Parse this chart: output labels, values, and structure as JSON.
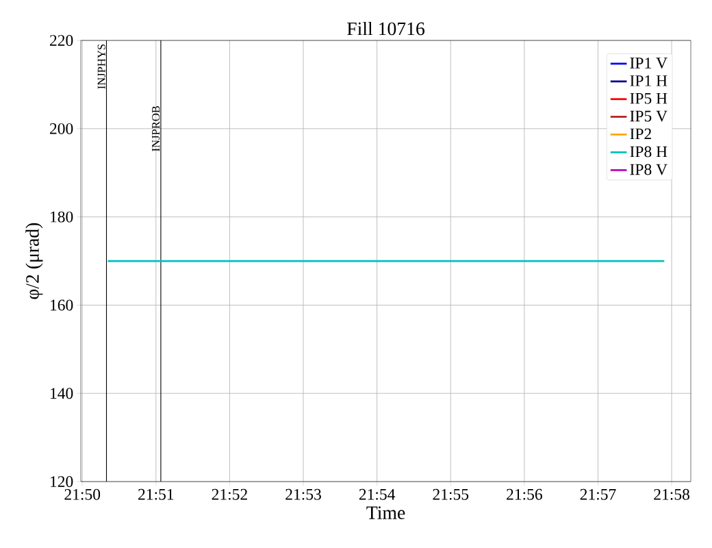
{
  "chart_data": {
    "type": "line",
    "title": "Fill 10716",
    "xlabel": "Time",
    "ylabel": "φ/2 (μrad)",
    "x": [
      21.8391,
      21.965
    ],
    "series": [
      {
        "name": "IP1 V",
        "color": "#0000ff",
        "values": [
          null,
          null
        ]
      },
      {
        "name": "IP1 H",
        "color": "#00008b",
        "values": [
          null,
          null
        ]
      },
      {
        "name": "IP5 H",
        "color": "#ff0000",
        "values": [
          null,
          null
        ]
      },
      {
        "name": "IP5 V",
        "color": "#b22222",
        "values": [
          null,
          null
        ]
      },
      {
        "name": "IP2",
        "color": "#ffa500",
        "values": [
          null,
          null
        ]
      },
      {
        "name": "IP8 H",
        "color": "#00bfbf",
        "values": [
          170,
          170
        ]
      },
      {
        "name": "IP8 V",
        "color": "#bf00bf",
        "values": [
          null,
          null
        ]
      }
    ],
    "xlim": [
      21.833,
      21.971
    ],
    "ylim": [
      120,
      220
    ],
    "xticks": [
      {
        "value": 21.833333,
        "label": "21:50"
      },
      {
        "value": 21.85,
        "label": "21:51"
      },
      {
        "value": 21.866667,
        "label": "21:52"
      },
      {
        "value": 21.883333,
        "label": "21:53"
      },
      {
        "value": 21.9,
        "label": "21:54"
      },
      {
        "value": 21.916667,
        "label": "21:55"
      },
      {
        "value": 21.933333,
        "label": "21:56"
      },
      {
        "value": 21.95,
        "label": "21:57"
      },
      {
        "value": 21.966667,
        "label": "21:58"
      }
    ],
    "yticks": [
      120,
      140,
      160,
      180,
      200,
      220
    ],
    "ref_lines": [
      {
        "axis": "x",
        "value": 21.8388,
        "label": "INJPHYS",
        "color": "#000000"
      },
      {
        "axis": "x",
        "value": 21.8511,
        "label": "INJPROB",
        "color": "#000000"
      }
    ],
    "grid": true,
    "legend": "top right",
    "line_style": "solid",
    "marker": "none"
  }
}
